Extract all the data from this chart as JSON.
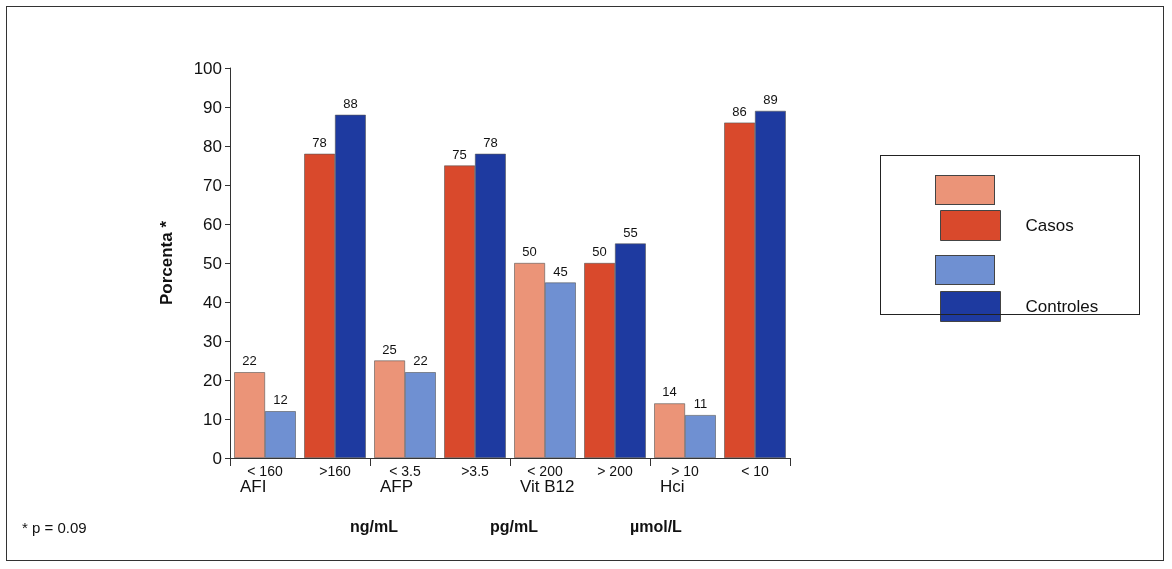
{
  "chart_data": {
    "type": "bar",
    "ylabel": "Porcenta *",
    "categories": [
      "< 160",
      ">160",
      "< 3.5",
      ">3.5",
      "< 200",
      "> 200",
      "> 10",
      "< 10"
    ],
    "series": [
      {
        "name": "Casos",
        "colors": [
          "#eb9478",
          "#d9492c",
          "#eb9478",
          "#d9492c",
          "#eb9478",
          "#d9492c",
          "#eb9478",
          "#d9492c"
        ],
        "values": [
          22,
          78,
          25,
          75,
          50,
          50,
          14,
          86
        ]
      },
      {
        "name": "Controles",
        "colors": [
          "#6f90d2",
          "#1e3aa0",
          "#6f90d2",
          "#1e3aa0",
          "#6f90d2",
          "#1e3aa0",
          "#6f90d2",
          "#1e3aa0"
        ],
        "values": [
          12,
          88,
          22,
          78,
          45,
          55,
          11,
          89
        ]
      }
    ],
    "ylim": [
      0,
      100
    ],
    "yticks": [
      0,
      10,
      20,
      30,
      40,
      50,
      60,
      70,
      80,
      90,
      100
    ],
    "grid": false,
    "legend": "right",
    "data_labels": true,
    "annotations": [
      "AFI",
      "AFP",
      "Vit B12",
      "Hci",
      "ng/mL",
      "pg/mL",
      "µmol/L",
      "* p = 0.09"
    ]
  }
}
